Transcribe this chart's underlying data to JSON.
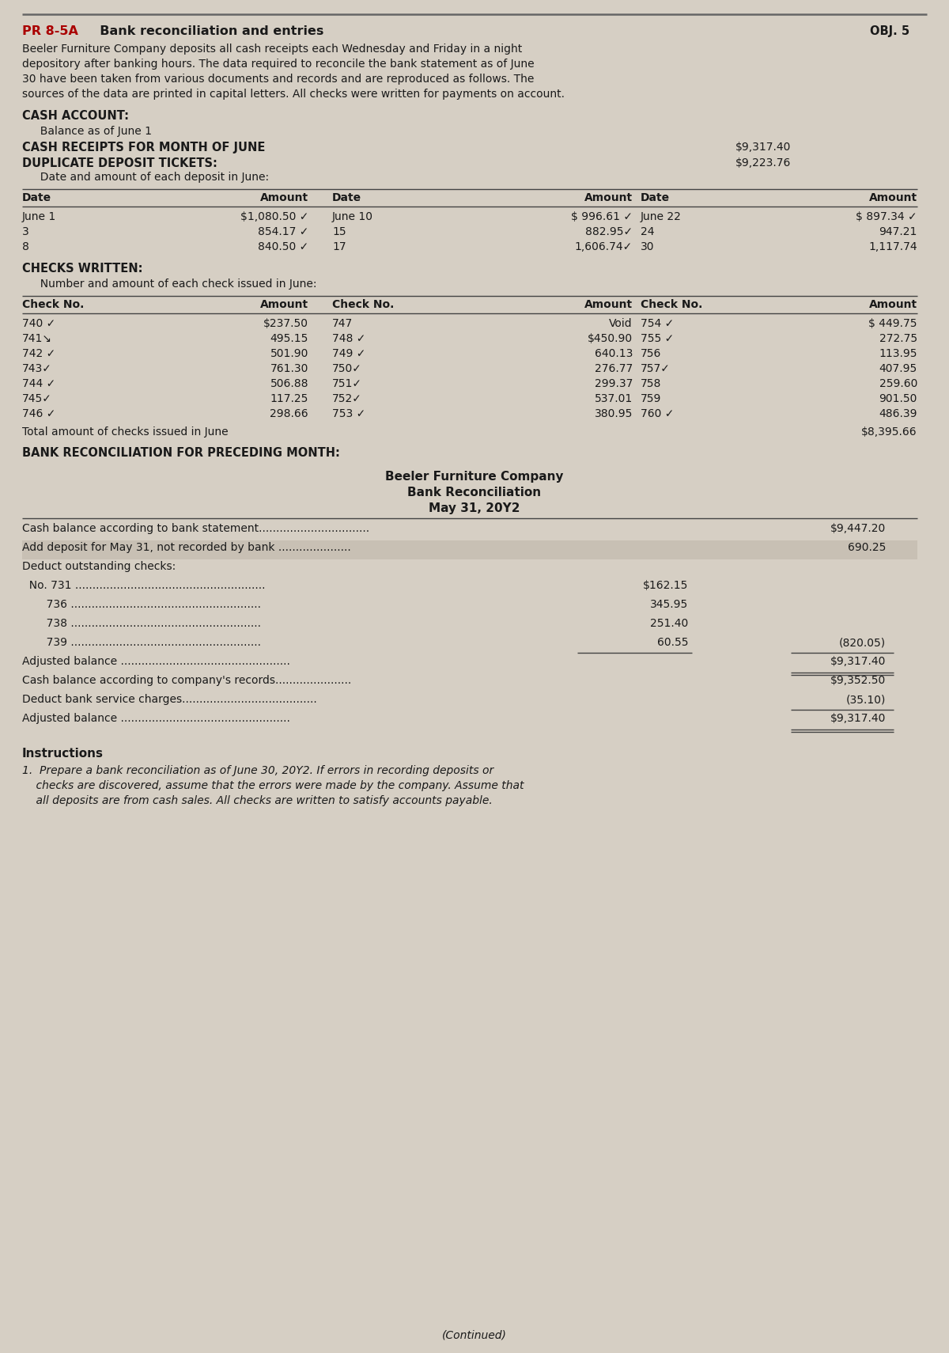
{
  "bg_color": "#d6cfc4",
  "text_color": "#1a1a1a",
  "title_pr": "PR 8-5A",
  "title_main": "  Bank reconciliation and entries",
  "obj": "OBJ. 5",
  "intro_lines": [
    "Beeler Furniture Company deposits all cash receipts each Wednesday and Friday in a night",
    "depository after banking hours. The data required to reconcile the bank statement as of June",
    "30 have been taken from various documents and records and are reproduced as follows. The",
    "sources of the data are printed in capital letters. All checks were written for payments on account."
  ],
  "cash_account_label": "CASH ACCOUNT:",
  "balance_label": "  Balance as of June 1",
  "cash_receipts_label": "CASH RECEIPTS FOR MONTH OF JUNE",
  "cash_receipts_val": "$9,317.40",
  "duplicate_label": "DUPLICATE DEPOSIT TICKETS:",
  "cash_receipts_month_val": "$9,223.76",
  "date_amount_label": "  Date and amount of each deposit in June:",
  "deposit_headers": [
    "Date",
    "Amount",
    "Date",
    "Amount",
    "Date",
    "Amount"
  ],
  "deposit_rows": [
    [
      "June 1",
      "$1,080.50 ✓",
      "June 10",
      "$ 996.61 ✓",
      "June 22",
      "$ 897.34 ✓"
    ],
    [
      "3",
      "854.17 ✓",
      "15",
      "882.95✓",
      "24",
      "947.21"
    ],
    [
      "8",
      "840.50 ✓",
      "17",
      "1,606.74✓",
      "30",
      "1,117.74"
    ]
  ],
  "checks_written_label": "CHECKS WRITTEN:",
  "checks_written_sub": "  Number and amount of each check issued in June:",
  "check_headers": [
    "Check No.",
    "Amount",
    "Check No.",
    "Amount",
    "Check No.",
    "Amount"
  ],
  "check_rows": [
    [
      "740 ✓",
      "$237.50",
      "747",
      "Void",
      "754 ✓",
      "$ 449.75"
    ],
    [
      "741↘",
      "495.15",
      "748 ✓",
      "$450.90",
      "755 ✓",
      "272.75"
    ],
    [
      "742 ✓",
      "501.90",
      "749 ✓",
      "640.13",
      "756",
      "113.95"
    ],
    [
      "743✓",
      "761.30",
      "750✓",
      "276.77",
      "757✓",
      "407.95"
    ],
    [
      "744 ✓",
      "506.88",
      "751✓",
      "299.37",
      "758",
      "259.60"
    ],
    [
      "745✓",
      "117.25",
      "752✓",
      "537.01",
      "759",
      "901.50"
    ],
    [
      "746 ✓",
      "298.66",
      "753 ✓",
      "380.95",
      "760 ✓",
      "486.39"
    ]
  ],
  "total_checks_label": "Total amount of checks issued in June",
  "total_checks_val": "$8,395.66",
  "bank_recon_preceding_label": "BANK RECONCILIATION FOR PRECEDING MONTH:",
  "recon_company": "Beeler Furniture Company",
  "recon_title": "Bank Reconciliation",
  "recon_date": "May 31, 20Y2",
  "recon_rows": [
    {
      "label": "Cash balance according to bank statement................................",
      "col1": "",
      "col2": "$9,447.20",
      "highlight": false,
      "ul1": false,
      "ul2": false,
      "dul2": false
    },
    {
      "label": "Add deposit for May 31, not recorded by bank .....................",
      "col1": "",
      "col2": "690.25",
      "highlight": true,
      "ul1": false,
      "ul2": false,
      "dul2": false
    },
    {
      "label": "Deduct outstanding checks:",
      "col1": "",
      "col2": "",
      "highlight": false,
      "ul1": false,
      "ul2": false,
      "dul2": false
    },
    {
      "label": "  No. 731 .......................................................",
      "col1": "$162.15",
      "col2": "",
      "highlight": false,
      "ul1": false,
      "ul2": false,
      "dul2": false
    },
    {
      "label": "       736 .......................................................",
      "col1": "345.95",
      "col2": "",
      "highlight": false,
      "ul1": false,
      "ul2": false,
      "dul2": false
    },
    {
      "label": "       738 .......................................................",
      "col1": "251.40",
      "col2": "",
      "highlight": false,
      "ul1": false,
      "ul2": false,
      "dul2": false
    },
    {
      "label": "       739 .......................................................",
      "col1": "60.55",
      "col2": "(820.05)",
      "highlight": false,
      "ul1": true,
      "ul2": true,
      "dul2": false
    },
    {
      "label": "Adjusted balance .................................................",
      "col1": "",
      "col2": "$9,317.40",
      "highlight": false,
      "ul1": false,
      "ul2": false,
      "dul2": true
    },
    {
      "label": "Cash balance according to company's records......................",
      "col1": "",
      "col2": "$9,352.50",
      "highlight": false,
      "ul1": false,
      "ul2": false,
      "dul2": false
    },
    {
      "label": "Deduct bank service charges.......................................",
      "col1": "",
      "col2": "(35.10)",
      "highlight": false,
      "ul1": false,
      "ul2": true,
      "dul2": false
    },
    {
      "label": "Adjusted balance .................................................",
      "col1": "",
      "col2": "$9,317.40",
      "highlight": false,
      "ul1": false,
      "ul2": false,
      "dul2": true
    }
  ],
  "instructions_title": "Instructions",
  "instructions_lines": [
    "1.  Prepare a bank reconciliation as of June 30, 20Y2. If errors in recording deposits or",
    "    checks are discovered, assume that the errors were made by the company. Assume that",
    "    all deposits are from cash sales. All checks are written to satisfy accounts payable."
  ],
  "continued_text": "(Continued)"
}
